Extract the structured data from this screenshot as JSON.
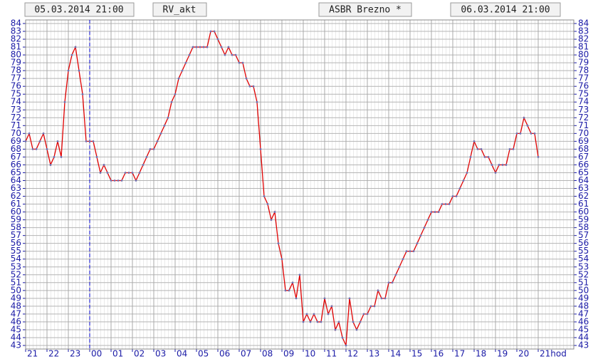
{
  "chart_data": {
    "type": "line",
    "start": "05.03.2014 21:00",
    "title": "RV_akt",
    "subtitle": "ASBR Brezno *",
    "end": "06.03.2014 21:00",
    "x": [
      0,
      10,
      20,
      30,
      40,
      50,
      60,
      70,
      80,
      90,
      100,
      110,
      120,
      130,
      140,
      150,
      160,
      170,
      180,
      190,
      200,
      210,
      220,
      230,
      240,
      250,
      260,
      270,
      280,
      290,
      300,
      310,
      320,
      330,
      340,
      350,
      360,
      370,
      380,
      390,
      400,
      410,
      420,
      430,
      440,
      450,
      460,
      470,
      480,
      490,
      500,
      510,
      520,
      530,
      540,
      550,
      560,
      570,
      580,
      590,
      600,
      610,
      620,
      630,
      640,
      650,
      660,
      670,
      680,
      690,
      700,
      710,
      720,
      730,
      740,
      750,
      760,
      770,
      780,
      790,
      800,
      810,
      820,
      830,
      840,
      850,
      860,
      870,
      880,
      890,
      900,
      910,
      920,
      930,
      940,
      950,
      960,
      970,
      980,
      990,
      1000,
      1010,
      1020,
      1030,
      1040,
      1050,
      1060,
      1070,
      1080,
      1090,
      1100,
      1110,
      1120,
      1130,
      1140,
      1150,
      1160,
      1170,
      1180,
      1190,
      1200,
      1210,
      1220,
      1230,
      1240,
      1250,
      1260,
      1270,
      1280,
      1290,
      1300,
      1310,
      1320,
      1330,
      1340,
      1350,
      1360,
      1370,
      1380,
      1390,
      1400,
      1410,
      1420,
      1430,
      1440
    ],
    "values": [
      69,
      70,
      68,
      68,
      69,
      70,
      68,
      66,
      67,
      69,
      67,
      74,
      78,
      80,
      81,
      78,
      75,
      69,
      69,
      69,
      67,
      65,
      66,
      65,
      64,
      64,
      64,
      64,
      65,
      65,
      65,
      64,
      65,
      66,
      67,
      68,
      68,
      69,
      70,
      71,
      72,
      74,
      75,
      77,
      78,
      79,
      80,
      81,
      81,
      81,
      81,
      81,
      83,
      83,
      82,
      81,
      80,
      81,
      80,
      80,
      79,
      79,
      77,
      76,
      76,
      74,
      68,
      62,
      61,
      59,
      60,
      56,
      54,
      50,
      50,
      51,
      49,
      52,
      46,
      47,
      46,
      47,
      46,
      46,
      49,
      47,
      48,
      45,
      46,
      44,
      43,
      49,
      46,
      45,
      46,
      47,
      47,
      48,
      48,
      50,
      49,
      49,
      51,
      51,
      52,
      53,
      54,
      55,
      55,
      55,
      56,
      57,
      58,
      59,
      60,
      60,
      60,
      61,
      61,
      61,
      62,
      62,
      63,
      64,
      65,
      67,
      69,
      68,
      68,
      67,
      67,
      66,
      65,
      66,
      66,
      66,
      68,
      68,
      70,
      70,
      72,
      71,
      70,
      70,
      67
    ],
    "color": "#e00000",
    "marker_color": "#7070b0",
    "xlim": [
      0,
      1540
    ],
    "xticks": [
      {
        "value": 0,
        "label": "21"
      },
      {
        "value": 60,
        "label": "22"
      },
      {
        "value": 120,
        "label": "23"
      },
      {
        "value": 180,
        "label": "00"
      },
      {
        "value": 240,
        "label": "01"
      },
      {
        "value": 300,
        "label": "02"
      },
      {
        "value": 360,
        "label": "03"
      },
      {
        "value": 420,
        "label": "04"
      },
      {
        "value": 480,
        "label": "05"
      },
      {
        "value": 540,
        "label": "06"
      },
      {
        "value": 600,
        "label": "07"
      },
      {
        "value": 660,
        "label": "08"
      },
      {
        "value": 720,
        "label": "09"
      },
      {
        "value": 780,
        "label": "10"
      },
      {
        "value": 840,
        "label": "11"
      },
      {
        "value": 900,
        "label": "12"
      },
      {
        "value": 960,
        "label": "13"
      },
      {
        "value": 1020,
        "label": "14"
      },
      {
        "value": 1080,
        "label": "15"
      },
      {
        "value": 1140,
        "label": "16"
      },
      {
        "value": 1200,
        "label": "17"
      },
      {
        "value": 1260,
        "label": "18"
      },
      {
        "value": 1320,
        "label": "19"
      },
      {
        "value": 1380,
        "label": "20"
      },
      {
        "value": 1440,
        "label": "21hod"
      }
    ],
    "ylim": [
      43,
      84
    ],
    "yticks": [
      43,
      44,
      45,
      46,
      47,
      48,
      49,
      50,
      51,
      52,
      53,
      54,
      55,
      56,
      57,
      58,
      59,
      60,
      61,
      62,
      63,
      64,
      65,
      66,
      67,
      68,
      69,
      70,
      71,
      72,
      73,
      74,
      75,
      76,
      77,
      78,
      79,
      80,
      81,
      82,
      83,
      84
    ],
    "grid": true,
    "vlines": [
      180
    ],
    "vline_color": "#0000cc"
  }
}
